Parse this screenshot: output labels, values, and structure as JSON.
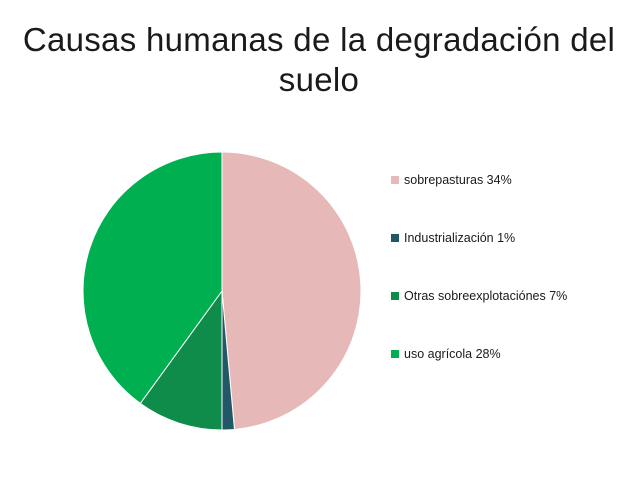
{
  "chart_data": {
    "type": "pie",
    "title": "Causas humanas de la degradación del suelo",
    "title_lines": [
      "Causas humanas de la degradación del",
      "suelo"
    ],
    "start_angle_deg": 0,
    "direction": "clockwise",
    "slices": [
      {
        "label": "sobrepasturas  34%",
        "value": 34,
        "color": "#E6B9B8"
      },
      {
        "label": "Industrialización 1%",
        "value": 1,
        "color": "#215868"
      },
      {
        "label": "Otras sobreexplotaciónes 7%",
        "value": 7,
        "color": "#0F8C4A"
      },
      {
        "label": "uso agrícola 28%",
        "value": 28,
        "color": "#00B050"
      }
    ],
    "legend_position": "right"
  }
}
